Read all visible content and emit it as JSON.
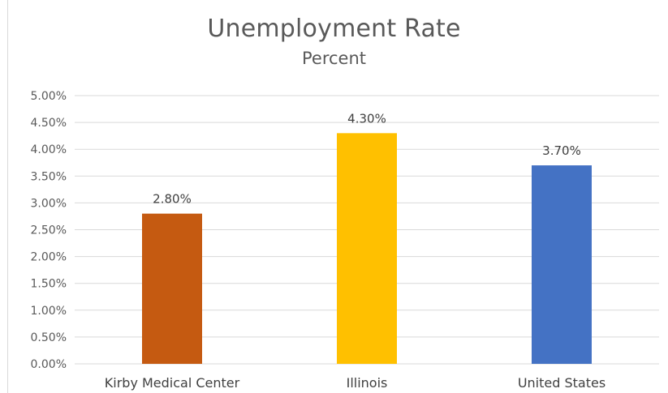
{
  "chart_data": {
    "type": "bar",
    "title": "Unemployment Rate",
    "subtitle": "Percent",
    "xlabel": "",
    "ylabel": "",
    "categories": [
      "Kirby Medical Center",
      "Illinois",
      "United States"
    ],
    "values": [
      2.8,
      4.3,
      3.7
    ],
    "data_labels": [
      "2.80%",
      "4.30%",
      "3.70%"
    ],
    "bar_colors": [
      "#c55a11",
      "#ffc000",
      "#4472c4"
    ],
    "ylim": [
      0,
      5
    ],
    "y_ticks": [
      0,
      0.5,
      1,
      1.5,
      2,
      2.5,
      3,
      3.5,
      4,
      4.5,
      5
    ],
    "y_tick_labels": [
      "0.00%",
      "0.50%",
      "1.00%",
      "1.50%",
      "2.00%",
      "2.50%",
      "3.00%",
      "3.50%",
      "4.00%",
      "4.50%",
      "5.00%"
    ],
    "grid": true,
    "legend": "none",
    "gridline_color": "#d9d9d9"
  }
}
